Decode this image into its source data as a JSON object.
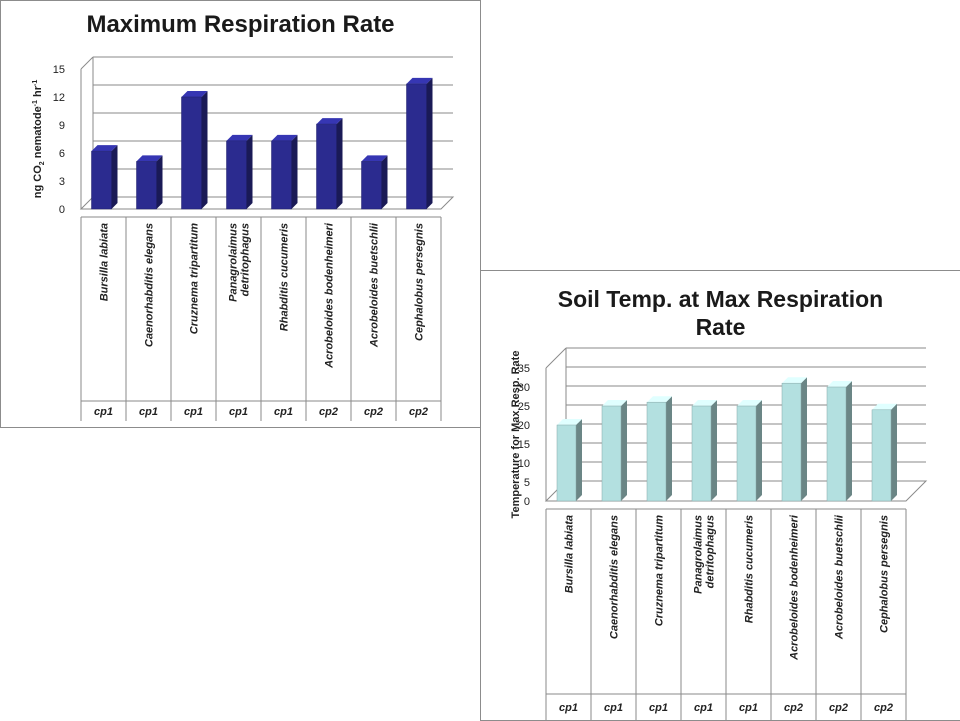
{
  "chart_data": [
    {
      "type": "bar",
      "title": "Maximum Respiration Rate",
      "ylabel": "ng CO2 nematode-1 hr-1",
      "ylabel_parts": [
        "ng CO",
        "2",
        " nematode",
        "-1",
        " hr",
        "-1"
      ],
      "ylim": [
        0,
        15
      ],
      "yticks": [
        0,
        3,
        6,
        9,
        12,
        15
      ],
      "categories": [
        "Bursilla labiata",
        "Caenorhabditis elegans",
        "Cruznema tripartitum",
        "Panagrolaimus detritophagus",
        "Rhabditis cucumeris",
        "Acrobeloides bodenheimeri",
        "Acrobeloides buetschlii",
        "Cephalobus persegnis"
      ],
      "category_lines": [
        [
          "Bursilla labiata"
        ],
        [
          "Caenorhabditis elegans"
        ],
        [
          "Cruznema tripartitum"
        ],
        [
          "Panagrolaimus",
          "detritophagus"
        ],
        [
          "Rhabditis cucumeris"
        ],
        [
          "Acrobeloides bodenheimeri"
        ],
        [
          "Acrobeloides buetschlii"
        ],
        [
          "Cephalobus persegnis"
        ]
      ],
      "groups": [
        "cp1",
        "cp1",
        "cp1",
        "cp1",
        "cp1",
        "cp2",
        "cp2",
        "cp2"
      ],
      "values": [
        6.2,
        5.1,
        12.0,
        7.3,
        7.3,
        9.1,
        5.1,
        13.4
      ],
      "bar_color": "#2b2b8f",
      "grid": true
    },
    {
      "type": "bar",
      "title": "Soil Temp. at Max Respiration Rate",
      "title_lines": [
        "Soil Temp. at Max Respiration",
        "Rate"
      ],
      "ylabel": "Temperature for Max Resp. Rate",
      "ylim": [
        0,
        35
      ],
      "yticks": [
        0,
        5,
        10,
        15,
        20,
        25,
        30,
        35
      ],
      "categories": [
        "Bursilla labiata",
        "Caenorhabditis elegans",
        "Cruznema tripartitum",
        "Panagrolaimus detritophagus",
        "Rhabditis cucumeris",
        "Acrobeloides bodenheimeri",
        "Acrobeloides buetschlii",
        "Cephalobus persegnis"
      ],
      "category_lines": [
        [
          "Bursilla labiata"
        ],
        [
          "Caenorhabditis elegans"
        ],
        [
          "Cruznema tripartitum"
        ],
        [
          "Panagrolaimus",
          "detritophagus"
        ],
        [
          "Rhabditis cucumeris"
        ],
        [
          "Acrobeloides bodenheimeri"
        ],
        [
          "Acrobeloides buetschlii"
        ],
        [
          "Cephalobus persegnis"
        ]
      ],
      "groups": [
        "cp1",
        "cp1",
        "cp1",
        "cp1",
        "cp1",
        "cp2",
        "cp2",
        "cp2"
      ],
      "values": [
        20,
        25,
        26,
        25,
        25,
        31,
        30,
        24
      ],
      "bar_color": "#b3e0e0",
      "grid": true
    }
  ]
}
